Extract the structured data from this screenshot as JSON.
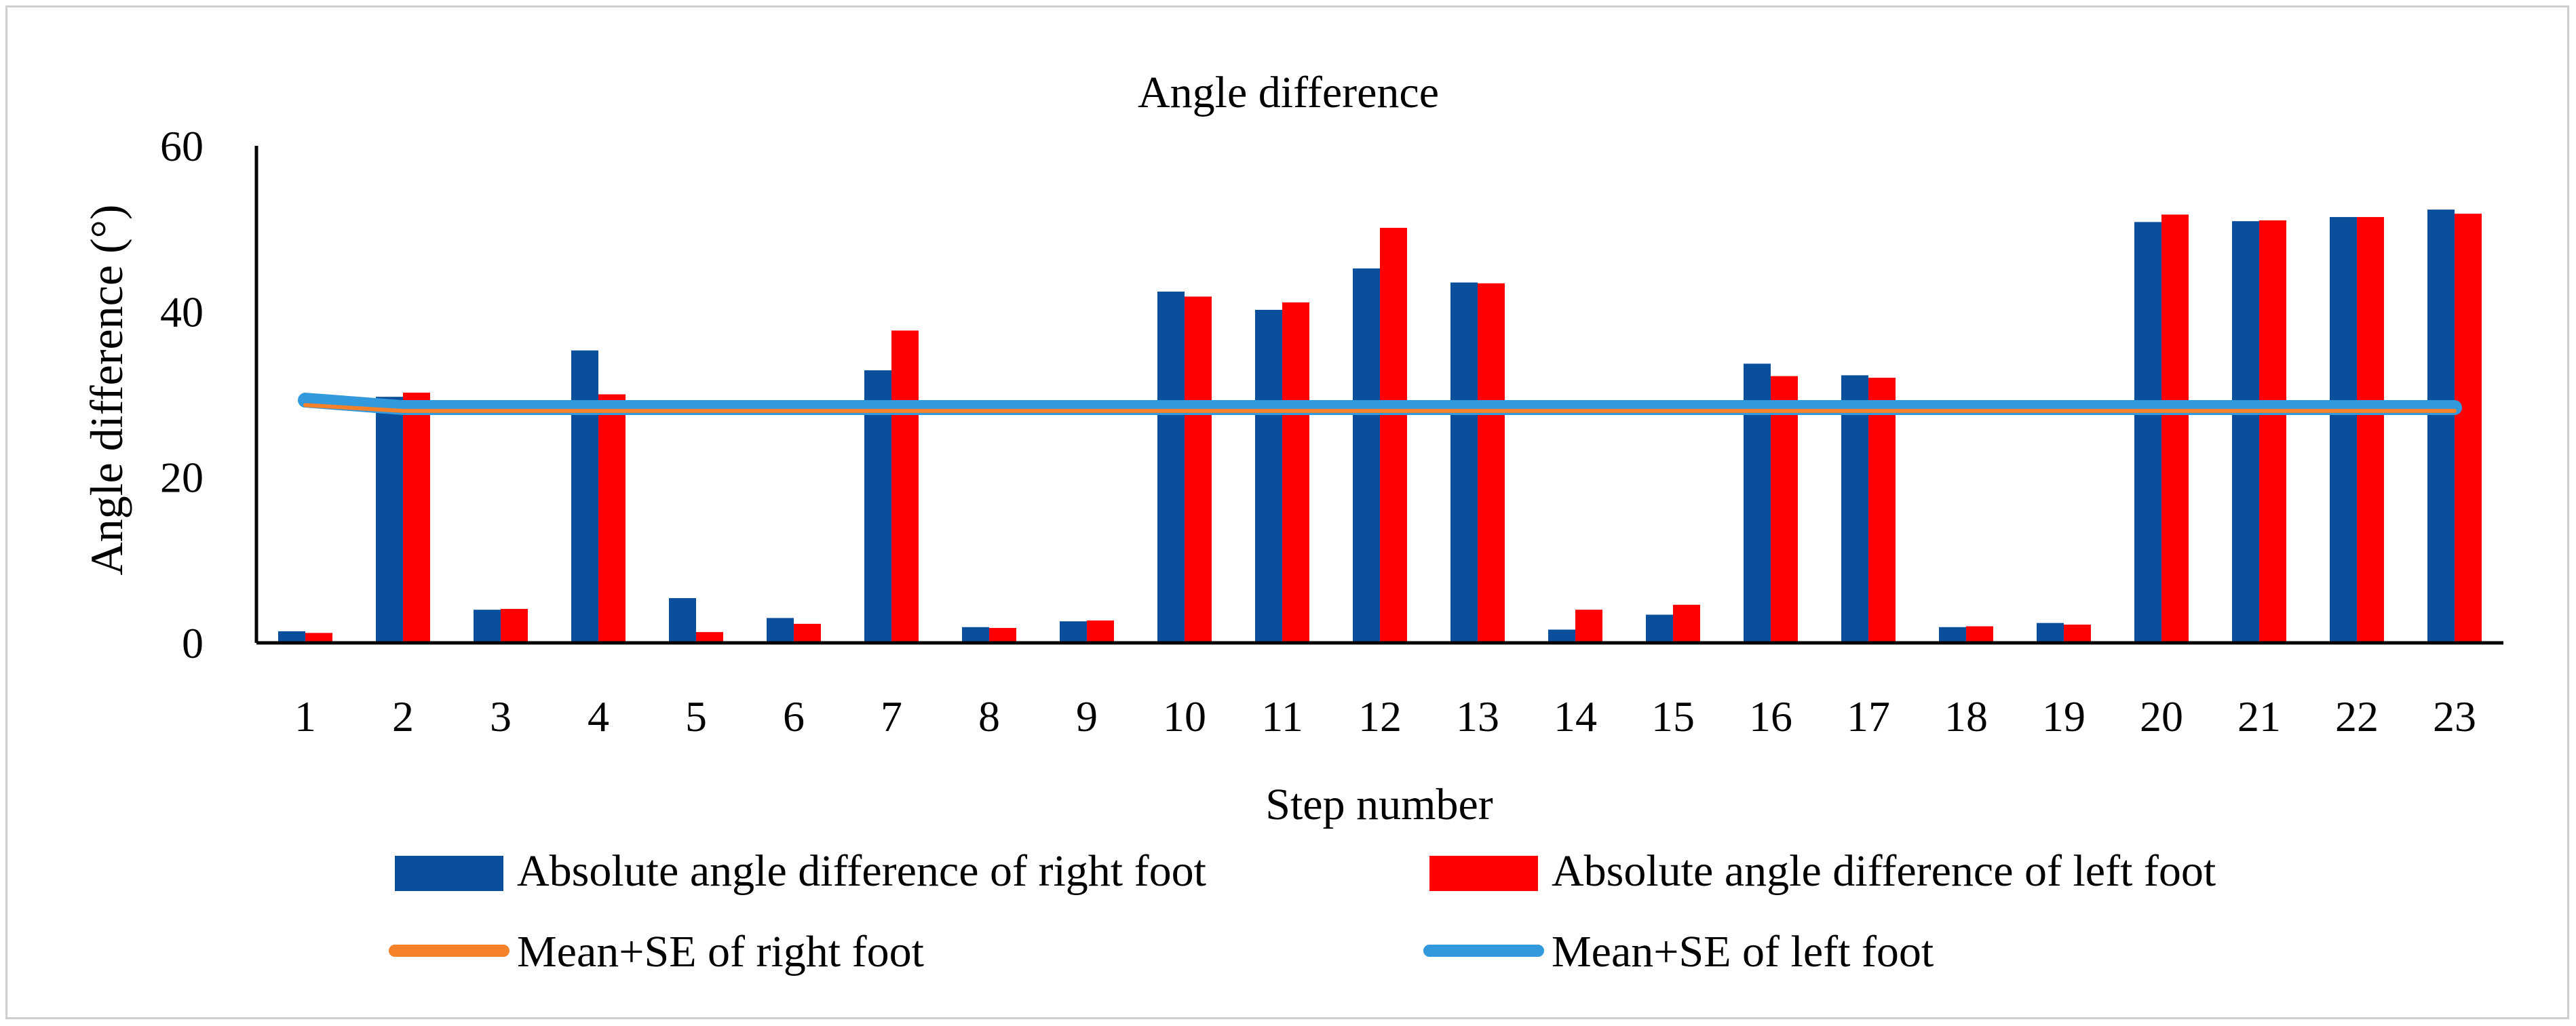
{
  "chart_data": {
    "type": "bar",
    "title": "Angle difference",
    "xlabel": "Step number",
    "ylabel": "Angle difference (°)",
    "ylim": [
      0,
      60
    ],
    "yticks": [
      0,
      20,
      40,
      60
    ],
    "grid": false,
    "categories": [
      "1",
      "2",
      "3",
      "4",
      "5",
      "6",
      "7",
      "8",
      "9",
      "10",
      "11",
      "12",
      "13",
      "14",
      "15",
      "16",
      "17",
      "18",
      "19",
      "20",
      "21",
      "22",
      "23"
    ],
    "series": [
      {
        "name": "Absolute angle difference of right foot",
        "color": "#0a4f9c",
        "values": [
          1.4,
          29.7,
          4.0,
          35.3,
          5.4,
          3.0,
          32.9,
          1.9,
          2.6,
          42.4,
          40.2,
          45.2,
          43.5,
          1.6,
          3.4,
          33.7,
          32.3,
          1.9,
          2.4,
          50.8,
          50.9,
          51.4,
          52.3
        ]
      },
      {
        "name": "Absolute angle difference of left foot",
        "color": "#ff0000",
        "values": [
          1.2,
          30.2,
          4.1,
          30.0,
          1.3,
          2.3,
          37.7,
          1.8,
          2.7,
          41.8,
          41.1,
          50.1,
          43.4,
          4.0,
          4.6,
          32.2,
          32.0,
          2.0,
          2.2,
          51.7,
          51.0,
          51.4,
          51.8
        ]
      }
    ],
    "lines": [
      {
        "name": "Mean+SE of right foot",
        "color": "#f5822b",
        "values": [
          28.7,
          28.0,
          28.0,
          28.0,
          28.0,
          28.0,
          28.0,
          28.0,
          28.0,
          28.0,
          28.0,
          28.0,
          28.0,
          28.0,
          28.0,
          28.0,
          28.0,
          28.0,
          28.0,
          28.0,
          28.0,
          28.0,
          28.0
        ]
      },
      {
        "name": "Mean+SE of left foot",
        "color": "#3399dd",
        "values": [
          29.3,
          28.4,
          28.4,
          28.4,
          28.4,
          28.4,
          28.4,
          28.4,
          28.4,
          28.4,
          28.4,
          28.4,
          28.4,
          28.4,
          28.4,
          28.4,
          28.4,
          28.4,
          28.4,
          28.4,
          28.4,
          28.4,
          28.4
        ]
      }
    ],
    "legend_position": "bottom"
  }
}
